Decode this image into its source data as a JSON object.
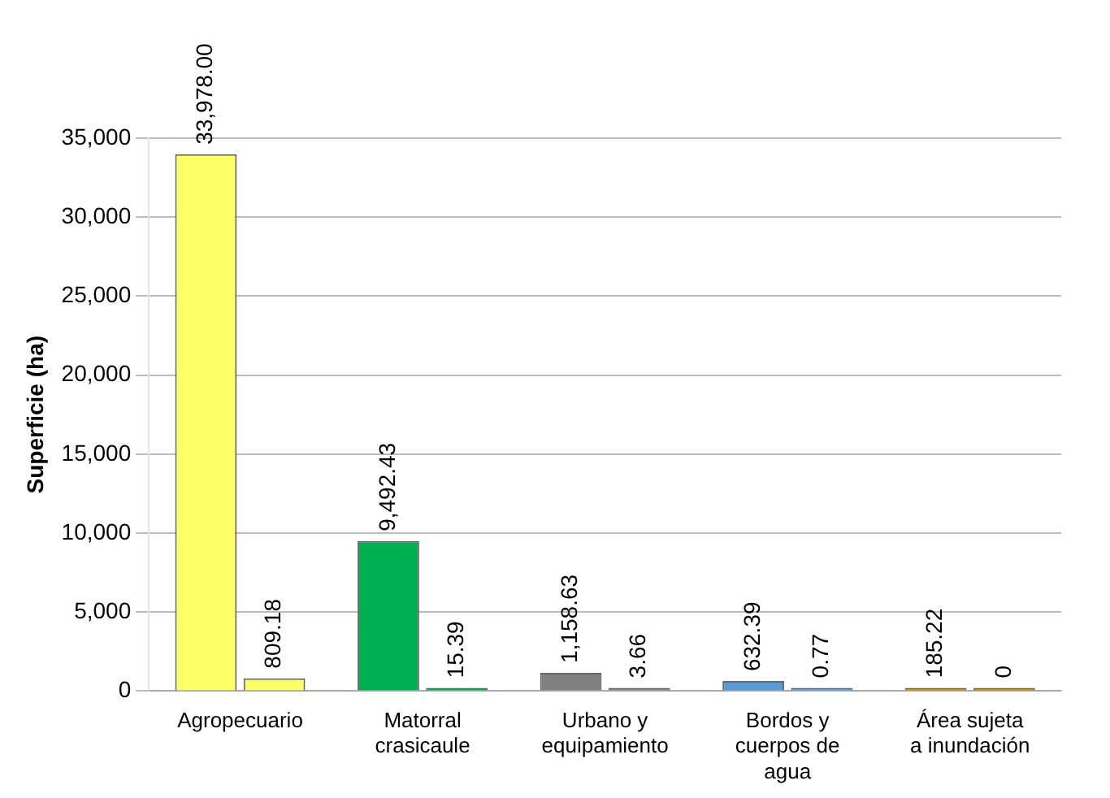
{
  "chart_data": {
    "type": "bar",
    "ylabel": "Superficie (ha)",
    "categories": [
      "Agropecuario",
      "Matorral crasicaule",
      "Urbano y equipamiento",
      "Bordos y cuerpos de agua",
      "Área sujeta a inundación"
    ],
    "series": [
      {
        "colors": [
          "#ffff66",
          "#00b050",
          "#808080",
          "#5b9bd5",
          "#c09000"
        ],
        "values": [
          33978,
          9492.43,
          1158.63,
          632.39,
          185.22
        ],
        "value_labels": [
          "33,978.00",
          "9,492.43",
          "1,158.63",
          "632.39",
          "185.22"
        ]
      },
      {
        "colors": [
          "#ffff66",
          "#00b050",
          "#808080",
          "#5b9bd5",
          "#c09000"
        ],
        "values": [
          809.18,
          15.39,
          3.66,
          0.77,
          0
        ],
        "value_labels": [
          "809.18",
          "15.39",
          "3.66",
          "0.77",
          "0"
        ]
      }
    ],
    "ylim": [
      0,
      35000
    ],
    "yticks": [
      0,
      {
        "value": 5000,
        "label": "5,000"
      },
      {
        "value": 10000,
        "label": "10,000"
      },
      {
        "value": 15000,
        "label": "15,000"
      },
      {
        "value": 20000,
        "label": "20,000"
      },
      {
        "value": 25000,
        "label": "25,000"
      },
      {
        "value": 30000,
        "label": "30,000"
      },
      {
        "value": 35000,
        "label": "35,000"
      }
    ],
    "grid": "y",
    "legend": false
  }
}
